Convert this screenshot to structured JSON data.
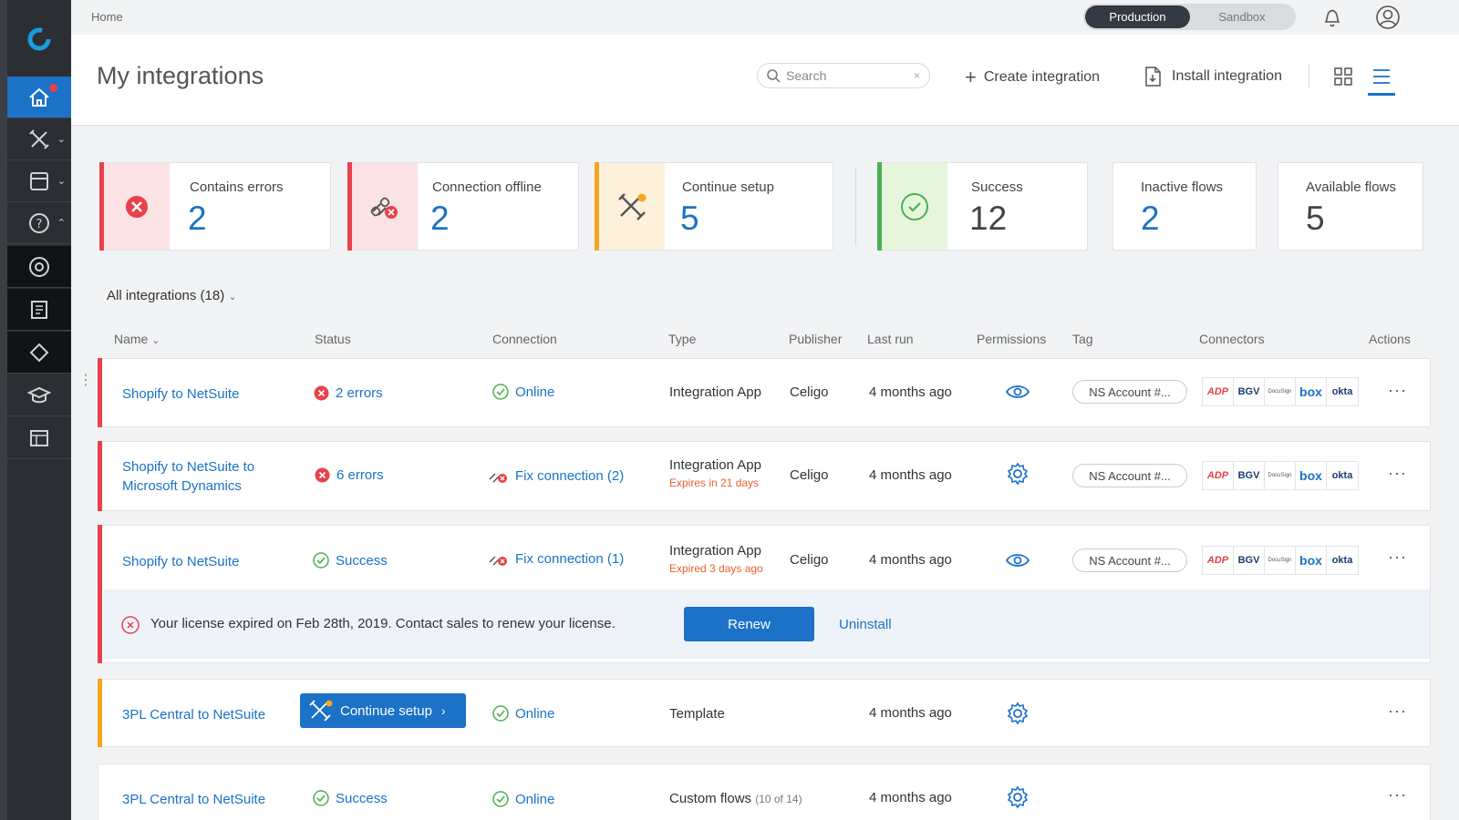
{
  "breadcrumb": "Home",
  "env": {
    "active": "Production",
    "inactive": "Sandbox"
  },
  "page_title": "My integrations",
  "search": {
    "placeholder": "Search",
    "clear": "×"
  },
  "actions": {
    "create": "Create integration",
    "install": "Install integration"
  },
  "cards": [
    {
      "label": "Contains errors",
      "count": "2",
      "accent": "#e8414c",
      "tint": "#fbe3e4"
    },
    {
      "label": "Connection offline",
      "count": "2",
      "accent": "#e8414c",
      "tint": "#fbe3e4"
    },
    {
      "label": "Continue setup",
      "count": "5",
      "accent": "#f5a623",
      "tint": "#fdf1dc"
    },
    {
      "label": "Success",
      "count": "12",
      "accent": "#4caf50",
      "tint": "#e6f6dd"
    },
    {
      "label": "Inactive flows",
      "count": "2"
    },
    {
      "label": "Available flows",
      "count": "5"
    }
  ],
  "filter_label": "All integrations (18)",
  "columns": {
    "name": "Name",
    "status": "Status",
    "connection": "Connection",
    "type": "Type",
    "publisher": "Publisher",
    "last_run": "Last run",
    "permissions": "Permissions",
    "tag": "Tag",
    "connectors": "Connectors",
    "actions": "Actions"
  },
  "connector_logos": [
    "ADP",
    "BGV",
    "DocuSign",
    "box",
    "okta"
  ],
  "rows": [
    {
      "name": "Shopify to NetSuite",
      "status": "2 errors",
      "connection": "Online",
      "type": "Integration App",
      "publisher": "Celigo",
      "last_run": "4 months ago",
      "tag": "NS Account #...",
      "actions": "···"
    },
    {
      "name_line1": "Shopify to NetSuite to",
      "name_line2": "Microsoft Dynamics",
      "status": "6 errors",
      "connection": "Fix connection (2)",
      "type": "Integration App",
      "type_sub": "Expires in 21 days",
      "publisher": "Celigo",
      "last_run": "4 months ago",
      "tag": "NS Account #...",
      "actions": "···"
    },
    {
      "name": "Shopify to NetSuite",
      "status": "Success",
      "connection": "Fix connection (1)",
      "type": "Integration App",
      "type_sub": "Expired 3 days ago",
      "publisher": "Celigo",
      "last_run": "4 months ago",
      "tag": "NS Account #...",
      "actions": "···",
      "license_msg": "Your license expired on Feb 28th, 2019. Contact sales to renew your license.",
      "renew": "Renew",
      "uninstall": "Uninstall"
    },
    {
      "name": "3PL Central to NetSuite",
      "button": "Continue setup",
      "connection": "Online",
      "type": "Template",
      "last_run": "4 months ago",
      "actions": "···"
    },
    {
      "name": "3PL Central to NetSuite",
      "status": "Success",
      "connection": "Online",
      "type": "Custom flows",
      "type_note": "(10 of 14)",
      "last_run": "4 months ago",
      "actions": "···"
    }
  ],
  "colors": {
    "brand_blue": "#1b72c7",
    "error_red": "#e8414c",
    "warning_orange": "#f5a623",
    "success_green": "#4caf50"
  },
  "icons": [
    "home-icon",
    "tools-icon",
    "inbox-icon",
    "help-icon",
    "lifebuoy-icon",
    "docs-icon",
    "tag-icon",
    "graduation-icon",
    "marketplace-icon",
    "bell-icon",
    "account-icon",
    "grid-view-icon",
    "list-view-icon",
    "eye-icon",
    "gear-icon"
  ]
}
